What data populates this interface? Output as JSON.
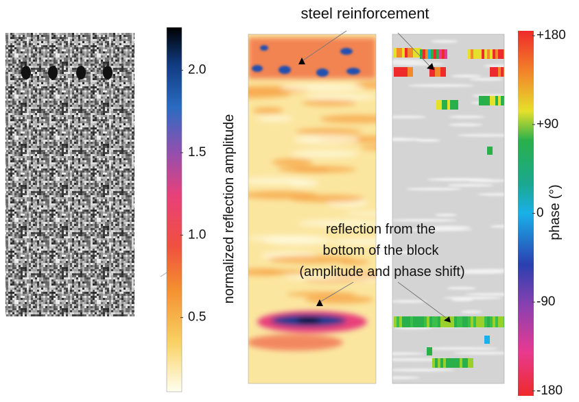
{
  "title": "steel reinforcement",
  "annotation": [
    "reflection from the",
    "bottom of the block",
    "(amplitude and phase shift)"
  ],
  "amplitude_colorbar": {
    "label": "normalized reflection amplitude",
    "lim": [
      0.05,
      2.26
    ],
    "ticks": [
      {
        "value": 0.5,
        "label": "0.5"
      },
      {
        "value": 1.0,
        "label": "1.0"
      },
      {
        "value": 1.5,
        "label": "1.5"
      },
      {
        "value": 2.0,
        "label": "2.0"
      }
    ]
  },
  "phase_colorbar": {
    "label": "phase (°)",
    "lim": [
      -185,
      185
    ],
    "ticks": [
      -180,
      -90,
      0,
      {
        "value": 90,
        "label": "+90"
      },
      {
        "value": 180,
        "label": "+180"
      }
    ]
  }
}
